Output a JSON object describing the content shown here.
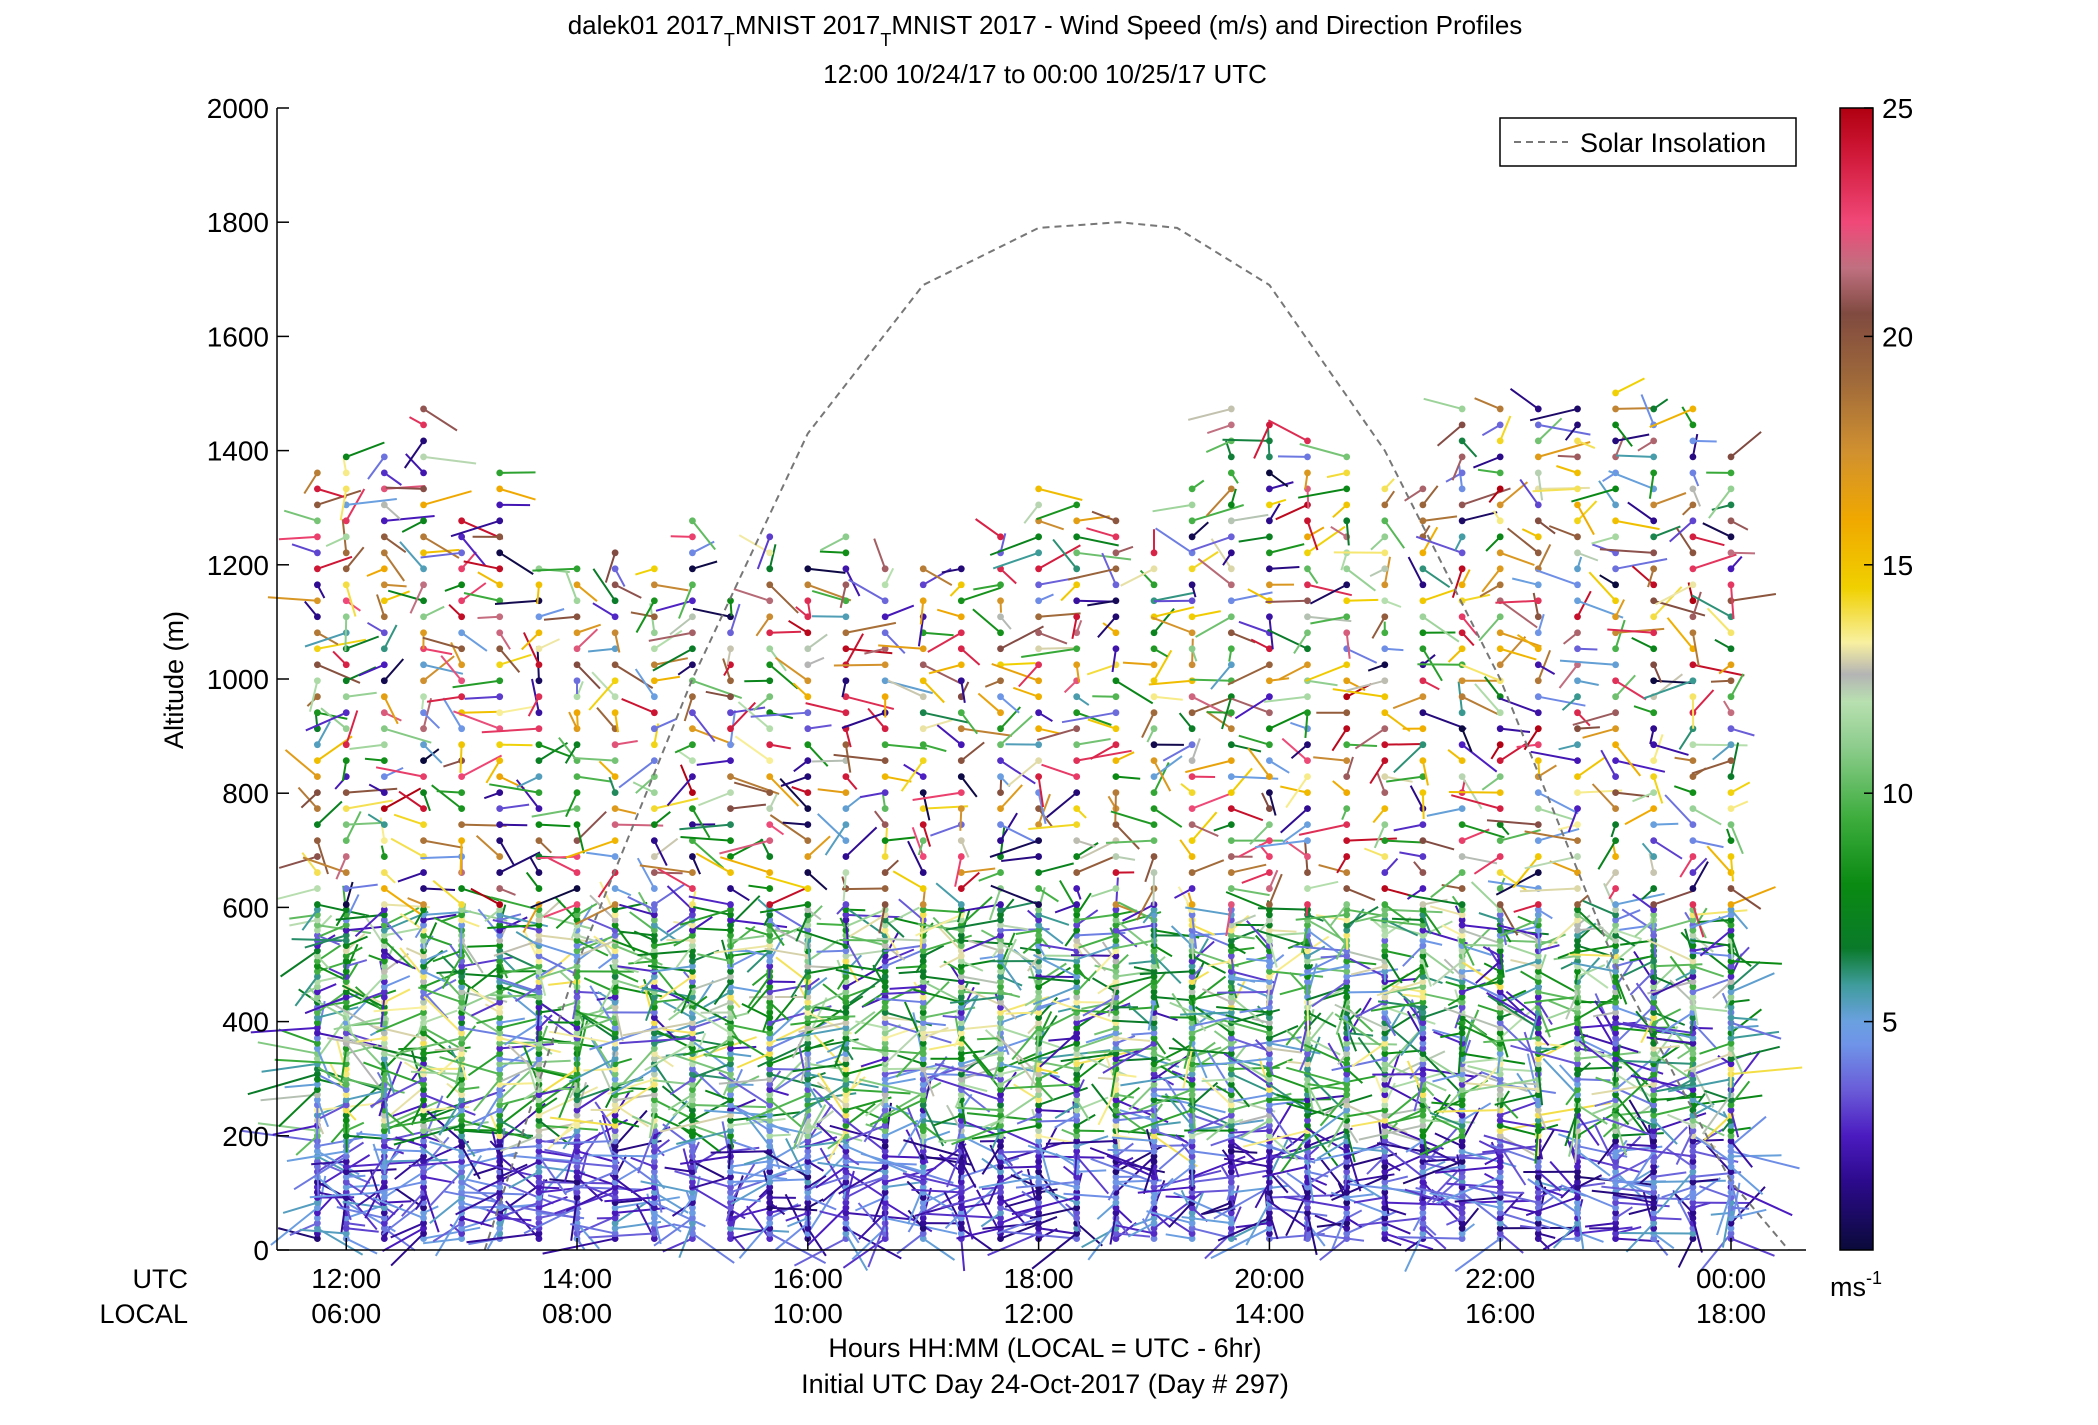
{
  "chart_data": {
    "type": "wind-barb-profile",
    "title_line1_parts": [
      "dalek01 2017",
      "T",
      "MNIST 2017",
      "T",
      "MNIST 2017 - Wind Speed (m/s) and Direction Profiles"
    ],
    "title_line2": "12:00 10/24/17 to 00:00 10/25/17  UTC",
    "ylabel": "Altitude (m)",
    "ylim": [
      0,
      2000
    ],
    "yticks": [
      0,
      200,
      400,
      600,
      800,
      1000,
      1200,
      1400,
      1600,
      1800,
      2000
    ],
    "xlim_hours_utc": [
      11.4,
      24.65
    ],
    "xticks_hours_utc": [
      12,
      14,
      16,
      18,
      20,
      22,
      24
    ],
    "utc_row_label": "UTC",
    "local_row_label": "LOCAL",
    "utc_tick_labels": [
      "12:00",
      "14:00",
      "16:00",
      "18:00",
      "20:00",
      "22:00",
      "00:00"
    ],
    "local_tick_labels": [
      "06:00",
      "08:00",
      "10:00",
      "12:00",
      "14:00",
      "16:00",
      "18:00"
    ],
    "xlabel_line1": "Hours HH:MM  (LOCAL = UTC - 6hr)",
    "xlabel_line2": "Initial UTC Day 24-Oct-2017 (Day # 297)",
    "legend": {
      "label": "Solar Insolation",
      "style": "dashed",
      "color": "#7f7f7f",
      "position": "top-right"
    },
    "solar_insolation": {
      "x_hours_utc": [
        13.2,
        14.0,
        15.0,
        16.0,
        17.0,
        18.0,
        18.7,
        19.2,
        20.0,
        21.0,
        22.0,
        23.0,
        24.0,
        24.5
      ],
      "y_altitude_scaled": [
        0,
        500,
        1000,
        1430,
        1690,
        1790,
        1800,
        1790,
        1690,
        1400,
        1000,
        500,
        120,
        0
      ]
    },
    "colorbar": {
      "min": 0,
      "max": 25,
      "ticks": [
        5,
        10,
        15,
        20,
        25
      ],
      "tick_labels": [
        "5",
        "10",
        "15",
        "20",
        "25"
      ],
      "unit_base": "ms",
      "unit_exp": "-1",
      "stops": [
        {
          "v": 0.0,
          "c": "#0a0a3a"
        },
        {
          "v": 1.5,
          "c": "#2c0a8c"
        },
        {
          "v": 2.5,
          "c": "#4b1bc0"
        },
        {
          "v": 3.5,
          "c": "#6a5cd8"
        },
        {
          "v": 4.5,
          "c": "#6f94e8"
        },
        {
          "v": 5.0,
          "c": "#6aa0e0"
        },
        {
          "v": 5.8,
          "c": "#3f9c9c"
        },
        {
          "v": 6.6,
          "c": "#0a7a2a"
        },
        {
          "v": 8.0,
          "c": "#0a8a12"
        },
        {
          "v": 9.5,
          "c": "#3fae3f"
        },
        {
          "v": 11.0,
          "c": "#8ccc8c"
        },
        {
          "v": 12.0,
          "c": "#b8e0b0"
        },
        {
          "v": 12.6,
          "c": "#b4b4b4"
        },
        {
          "v": 13.3,
          "c": "#f8f0a0"
        },
        {
          "v": 14.5,
          "c": "#f0d000"
        },
        {
          "v": 16.0,
          "c": "#f0a800"
        },
        {
          "v": 17.5,
          "c": "#d09030"
        },
        {
          "v": 19.0,
          "c": "#a06a3a"
        },
        {
          "v": 20.5,
          "c": "#804a40"
        },
        {
          "v": 21.5,
          "c": "#c07080"
        },
        {
          "v": 22.5,
          "c": "#f04878"
        },
        {
          "v": 24.0,
          "c": "#d01838"
        },
        {
          "v": 25.0,
          "c": "#b00010"
        }
      ]
    },
    "profile_times_hours_utc": [
      11.75,
      12.0,
      12.33,
      12.67,
      13.0,
      13.33,
      13.67,
      14.0,
      14.33,
      14.67,
      15.0,
      15.33,
      15.67,
      16.0,
      16.33,
      16.67,
      17.0,
      17.33,
      17.67,
      18.0,
      18.33,
      18.67,
      19.0,
      19.33,
      19.67,
      20.0,
      20.33,
      20.67,
      21.0,
      21.33,
      21.67,
      22.0,
      22.33,
      22.67,
      23.0,
      23.33,
      23.67,
      24.0
    ],
    "profile_top_altitudes_m": [
      1370,
      1410,
      1410,
      1490,
      1300,
      1380,
      1200,
      1200,
      1230,
      1200,
      1300,
      1150,
      1270,
      1210,
      1270,
      1200,
      1200,
      1200,
      1260,
      1340,
      1310,
      1280,
      1240,
      1340,
      1480,
      1450,
      1440,
      1400,
      1360,
      1350,
      1480,
      1490,
      1480,
      1490,
      1510,
      1480,
      1490,
      1410
    ]
  }
}
